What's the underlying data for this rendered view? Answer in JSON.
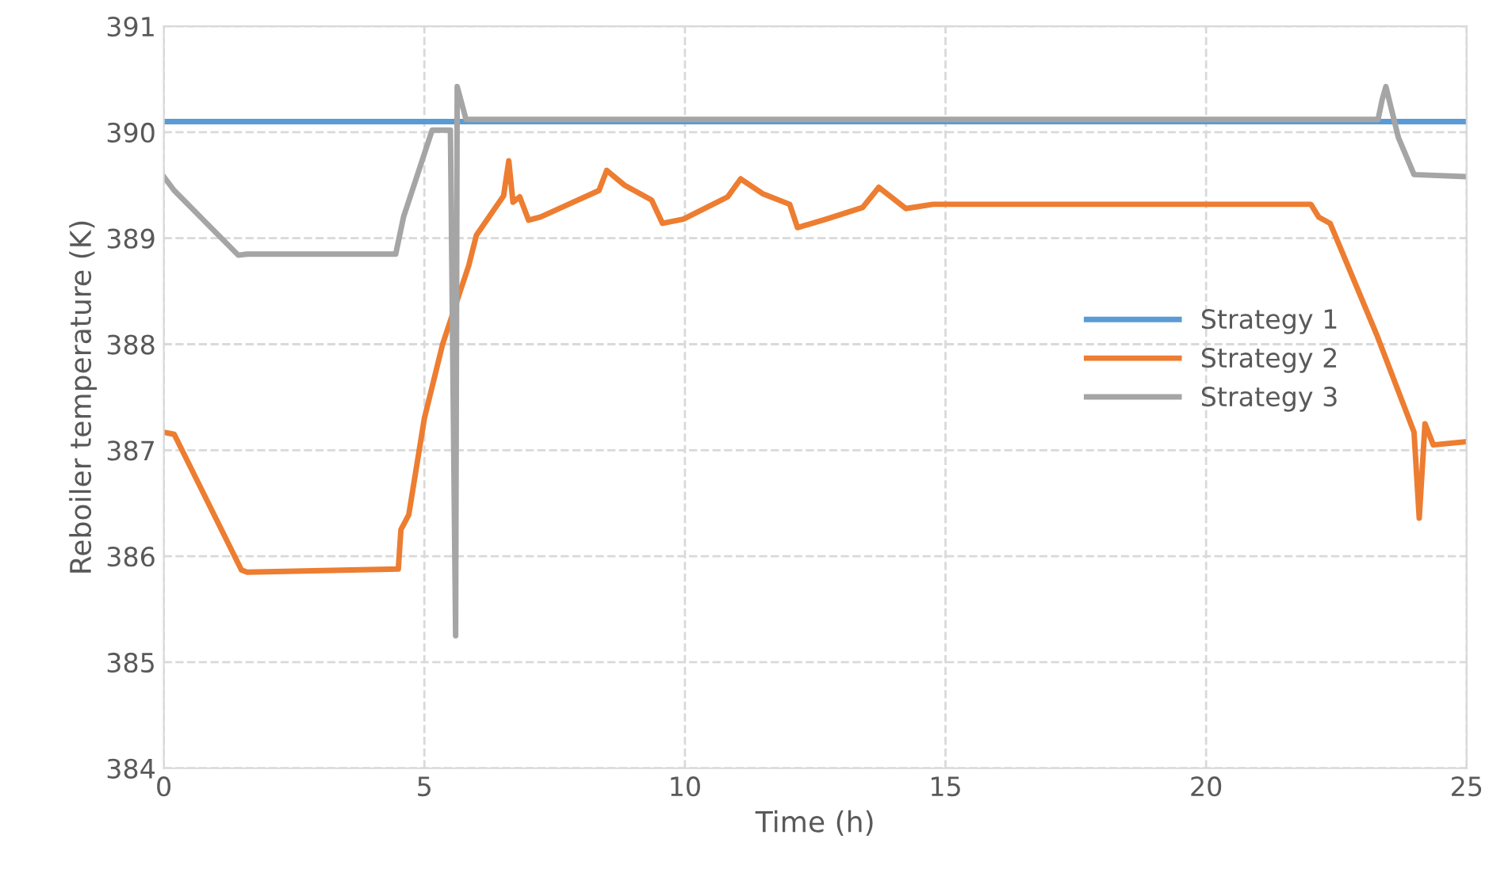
{
  "chart_data": {
    "type": "line",
    "xlabel": "Time (h)",
    "ylabel": "Reboiler temperature (K)",
    "xlim": [
      0,
      25
    ],
    "ylim": [
      384,
      391
    ],
    "xticks": [
      0,
      5,
      10,
      15,
      20,
      25
    ],
    "yticks": [
      384,
      385,
      386,
      387,
      388,
      389,
      390,
      391
    ],
    "grid": true,
    "legend": "right",
    "marker": "none",
    "line_style": "solid",
    "series": [
      {
        "name": "Strategy 1",
        "color": "#5b9bd5",
        "x": [
          0,
          25
        ],
        "values": [
          390.1,
          390.1
        ]
      },
      {
        "name": "Strategy 2",
        "color": "#ed7d31",
        "x": [
          0,
          0.2,
          1.49,
          1.6,
          4.5,
          4.55,
          4.7,
          5.0,
          5.35,
          5.85,
          6.0,
          6.52,
          6.62,
          6.7,
          6.83,
          7.0,
          7.23,
          8.35,
          8.5,
          8.84,
          9.36,
          9.57,
          9.97,
          10.82,
          11.07,
          11.49,
          12.01,
          12.16,
          12.71,
          13.41,
          13.72,
          14.24,
          14.76,
          22.01,
          22.16,
          22.38,
          23.29,
          23.99,
          24.09,
          24.2,
          24.36,
          25
        ],
        "values": [
          387.17,
          387.15,
          385.87,
          385.85,
          385.88,
          386.25,
          386.39,
          387.3,
          388.0,
          388.74,
          389.03,
          389.4,
          389.73,
          389.34,
          389.39,
          389.17,
          389.2,
          389.45,
          389.64,
          389.5,
          389.36,
          389.14,
          389.18,
          389.39,
          389.56,
          389.42,
          389.32,
          389.1,
          389.18,
          389.29,
          389.48,
          389.28,
          389.32,
          389.32,
          389.2,
          389.14,
          388.07,
          387.17,
          386.36,
          387.25,
          387.05,
          387.08
        ]
      },
      {
        "name": "Strategy 3",
        "color": "#a5a5a5",
        "x": [
          0,
          0.2,
          1.43,
          1.6,
          4.45,
          4.6,
          5.15,
          5.5,
          5.6,
          5.63,
          5.8,
          23.3,
          23.38,
          23.45,
          23.69,
          23.99,
          25
        ],
        "values": [
          389.58,
          389.45,
          388.84,
          388.85,
          388.85,
          389.2,
          390.02,
          390.02,
          385.25,
          390.43,
          390.12,
          390.12,
          390.31,
          390.43,
          389.95,
          389.6,
          389.58
        ]
      }
    ]
  }
}
